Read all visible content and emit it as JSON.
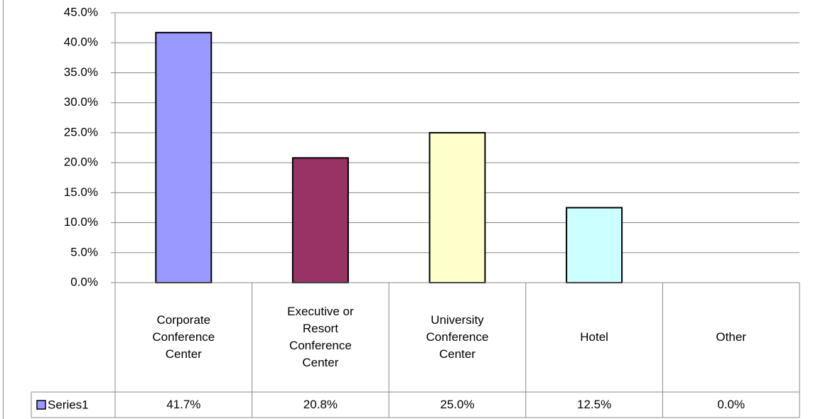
{
  "chart_data": {
    "type": "bar",
    "categories": [
      "Corporate Conference Center",
      "Executive or Resort Conference Center",
      "University Conference Center",
      "Hotel",
      "Other"
    ],
    "series": [
      {
        "name": "Series1",
        "color": "#9999ff",
        "colors": [
          "#9999ff",
          "#993366",
          "#ffffcc",
          "#ccffff",
          "#ccffff"
        ],
        "values": [
          41.7,
          20.8,
          25.0,
          12.5,
          0.0
        ],
        "value_labels": [
          "41.7%",
          "20.8%",
          "25.0%",
          "12.5%",
          "0.0%"
        ]
      }
    ],
    "ylim": [
      0,
      45
    ],
    "yticks": [
      {
        "value": 0,
        "label": "0.0%"
      },
      {
        "value": 5,
        "label": "5.0%"
      },
      {
        "value": 10,
        "label": "10.0%"
      },
      {
        "value": 15,
        "label": "15.0%"
      },
      {
        "value": 20,
        "label": "20.0%"
      },
      {
        "value": 25,
        "label": "25.0%"
      },
      {
        "value": 30,
        "label": "30.0%"
      },
      {
        "value": 35,
        "label": "35.0%"
      },
      {
        "value": 40,
        "label": "40.0%"
      },
      {
        "value": 45,
        "label": "45.0%"
      }
    ],
    "grid": true
  }
}
